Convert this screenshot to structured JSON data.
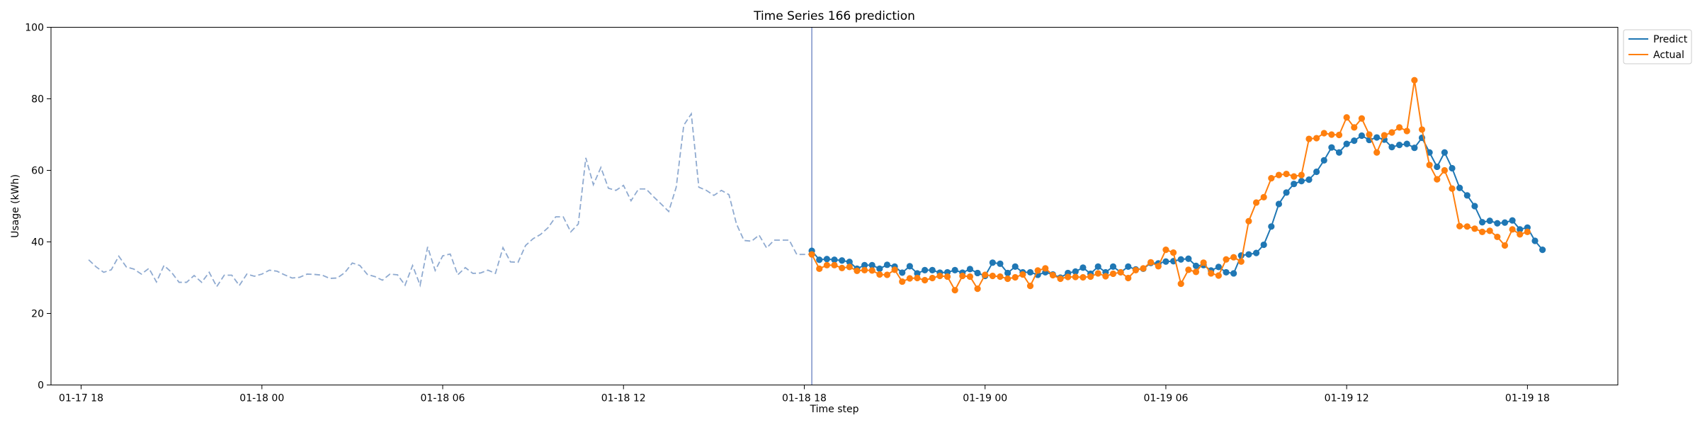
{
  "chart_data": {
    "type": "line",
    "title": "Time Series 166 prediction",
    "xlabel": "Time step",
    "ylabel": "Usage (kWh)",
    "ylim": [
      0,
      100
    ],
    "yticks": [
      0,
      20,
      40,
      60,
      80,
      100
    ],
    "x_unit": "hours",
    "x_axis_note": "time values expressed as hours; tick labels show MM-DD HH",
    "xlim": [
      -1.0,
      51.0
    ],
    "xticks": [
      {
        "t": 0,
        "label": "01-17 18"
      },
      {
        "t": 6,
        "label": "01-18 00"
      },
      {
        "t": 12,
        "label": "01-18 06"
      },
      {
        "t": 18,
        "label": "01-18 12"
      },
      {
        "t": 24,
        "label": "01-18 18"
      },
      {
        "t": 30,
        "label": "01-19 00"
      },
      {
        "t": 36,
        "label": "01-19 06"
      },
      {
        "t": 42,
        "label": "01-19 12"
      },
      {
        "t": 48,
        "label": "01-19 18"
      }
    ],
    "split_t": 24.25,
    "grid": false,
    "legend_position": "upper-right-outside",
    "history": {
      "t_start": 0.25,
      "t_step": 0.25,
      "color": "#8faad0",
      "style": "dashed",
      "values": [
        35,
        33,
        31.5,
        32.2,
        36,
        33,
        32.4,
        31,
        32.6,
        28.8,
        33.4,
        31.5,
        28.7,
        28.7,
        30.6,
        28.7,
        31.5,
        27.5,
        30.7,
        30.7,
        27.8,
        31,
        30.4,
        31,
        32.1,
        31.8,
        30.8,
        29.9,
        30.1,
        31,
        30.9,
        30.7,
        29.8,
        29.9,
        31.4,
        34.1,
        33.4,
        30.9,
        30.3,
        29.3,
        31,
        30.8,
        27.9,
        33.4,
        27.9,
        38.6,
        32,
        36.1,
        36.6,
        30.8,
        32.8,
        31.2,
        31.3,
        32.1,
        31.2,
        38.4,
        34.4,
        34.3,
        39,
        40.9,
        42.1,
        44,
        47,
        47,
        42.8,
        45,
        63.5,
        56,
        60.8,
        55,
        54.4,
        55.8,
        51.5,
        54.8,
        54.8,
        52.6,
        50.6,
        48.5,
        55.3,
        72.6,
        75.8,
        55.3,
        54.4,
        53,
        54.4,
        53.2,
        45,
        40.4,
        40.2,
        41.9,
        38.3,
        40.5,
        40.5,
        40.5,
        36.5,
        36.5,
        36.6
      ]
    },
    "series": [
      {
        "name": "Predict",
        "color": "#1f77b4",
        "t_start": 24.25,
        "t_step": 0.25,
        "values": [
          37.5,
          35,
          35.2,
          35,
          34.8,
          34.4,
          32.5,
          33.5,
          33.5,
          32.5,
          33.6,
          33.1,
          31.4,
          33.2,
          31.2,
          32.1,
          32.1,
          31.4,
          31.5,
          32.1,
          31.4,
          32.4,
          31.3,
          30.5,
          34.2,
          33.9,
          31.3,
          33.1,
          31.5,
          31.5,
          30.8,
          31.5,
          30.9,
          30,
          31.3,
          31.7,
          32.8,
          31.1,
          33.1,
          31.5,
          33.1,
          31.5,
          33.1,
          32.3,
          32.5,
          34.1,
          34,
          34.5,
          34.6,
          35.1,
          35.3,
          33.3,
          33.5,
          32,
          33,
          31.5,
          31.2,
          36.2,
          36.5,
          36.9,
          39.2,
          44.3,
          50.6,
          53.8,
          56.2,
          57,
          57.4,
          59.6,
          62.8,
          66.4,
          65,
          67.4,
          68.3,
          69.7,
          68.5,
          69.2,
          68.6,
          66.5,
          67.1,
          67.4,
          66.3,
          69.1,
          65,
          61,
          65,
          60.6,
          55.1,
          53,
          50,
          45.5,
          45.9,
          45.2,
          45.4,
          46,
          43.5,
          44,
          40.3,
          37.8
        ]
      },
      {
        "name": "Actual",
        "color": "#ff7f0e",
        "t_start": 24.25,
        "t_step": 0.25,
        "values": [
          36.5,
          32.5,
          33.5,
          33.5,
          32.7,
          33,
          31.9,
          32.1,
          32,
          30.9,
          30.8,
          32.2,
          28.9,
          29.8,
          29.9,
          29.3,
          29.9,
          30.5,
          30.3,
          26.5,
          30.5,
          30.3,
          26.9,
          30.8,
          30.5,
          30.3,
          29.7,
          30.1,
          30.9,
          27.7,
          32,
          32.6,
          30.7,
          29.7,
          30.2,
          30.2,
          30.1,
          30.3,
          31.2,
          30.4,
          31.1,
          31.5,
          29.9,
          32.1,
          32.6,
          34.3,
          33.2,
          37.8,
          37,
          28.3,
          32.2,
          31.6,
          34.2,
          31.2,
          30.6,
          35.1,
          35.7,
          34.5,
          45.8,
          51,
          52.5,
          57.8,
          58.7,
          59,
          58.3,
          58.7,
          68.8,
          69,
          70.4,
          70,
          69.9,
          74.8,
          72,
          74.5,
          70,
          65,
          69.8,
          70.6,
          72,
          71,
          85.2,
          71.4,
          61.5,
          57.5,
          60,
          54.9,
          44.4,
          44.3,
          43.7,
          42.8,
          43.1,
          41.4,
          39,
          43.5,
          42.1,
          42.8
        ]
      }
    ]
  }
}
